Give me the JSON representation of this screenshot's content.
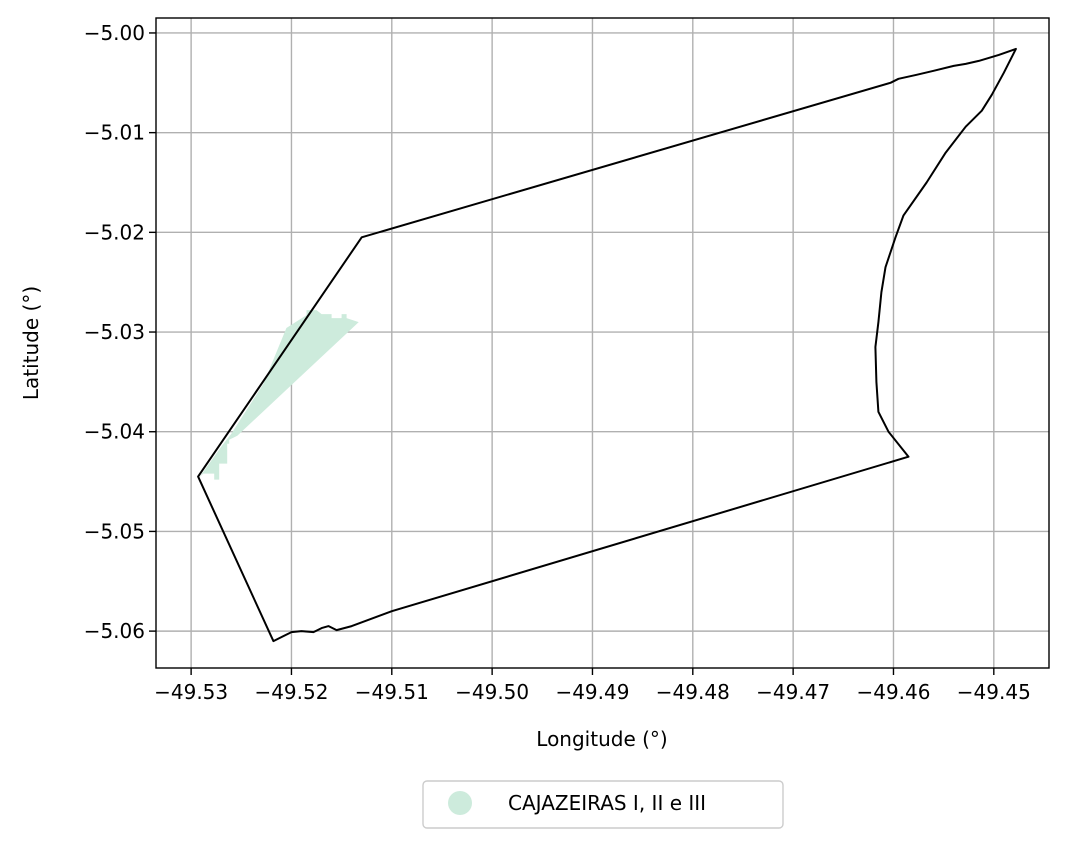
{
  "chart_data": {
    "type": "map",
    "xlabel": "Longitude (°)",
    "ylabel": "Latitude (°)",
    "xlim": [
      -49.5335,
      -49.4445
    ],
    "ylim": [
      -5.0637,
      -4.9985
    ],
    "grid": true,
    "x_ticks": [
      -49.53,
      -49.52,
      -49.51,
      -49.5,
      -49.49,
      -49.48,
      -49.47,
      -49.46,
      -49.45
    ],
    "x_tick_labels": [
      "−49.53",
      "−49.52",
      "−49.51",
      "−49.50",
      "−49.49",
      "−49.48",
      "−49.47",
      "−49.46",
      "−49.45"
    ],
    "y_ticks": [
      -5.0,
      -5.01,
      -5.02,
      -5.03,
      -5.04,
      -5.05,
      -5.06
    ],
    "y_tick_labels": [
      "−5.00",
      "−5.01",
      "−5.02",
      "−5.03",
      "−5.04",
      "−5.05",
      "−5.06"
    ],
    "boundary": {
      "stroke": "#000000",
      "coordinates": [
        [
          -49.513,
          -5.0205
        ],
        [
          -49.4603,
          -5.005
        ],
        [
          -49.4595,
          -5.0046
        ],
        [
          -49.4577,
          -5.0042
        ],
        [
          -49.456,
          -5.0038
        ],
        [
          -49.454,
          -5.0033
        ],
        [
          -49.4528,
          -5.0031
        ],
        [
          -49.4515,
          -5.0028
        ],
        [
          -49.4495,
          -5.0022
        ],
        [
          -49.4478,
          -5.0016
        ],
        [
          -49.449,
          -5.004
        ],
        [
          -49.4502,
          -5.0062
        ],
        [
          -49.4512,
          -5.0078
        ],
        [
          -49.4528,
          -5.0094
        ],
        [
          -49.4548,
          -5.012
        ],
        [
          -49.4567,
          -5.015
        ],
        [
          -49.459,
          -5.0183
        ],
        [
          -49.4598,
          -5.0205
        ],
        [
          -49.4608,
          -5.0235
        ],
        [
          -49.4612,
          -5.026
        ],
        [
          -49.4615,
          -5.029
        ],
        [
          -49.4618,
          -5.0315
        ],
        [
          -49.4617,
          -5.035
        ],
        [
          -49.4615,
          -5.038
        ],
        [
          -49.4605,
          -5.04
        ],
        [
          -49.4585,
          -5.0425
        ],
        [
          -49.51,
          -5.058
        ],
        [
          -49.514,
          -5.0595
        ],
        [
          -49.5155,
          -5.0599
        ],
        [
          -49.5163,
          -5.0595
        ],
        [
          -49.517,
          -5.0597
        ],
        [
          -49.5178,
          -5.0601
        ],
        [
          -49.519,
          -5.06
        ],
        [
          -49.52,
          -5.0601
        ],
        [
          -49.521,
          -5.0606
        ],
        [
          -49.5218,
          -5.061
        ],
        [
          -49.5293,
          -5.0445
        ],
        [
          -49.513,
          -5.0205
        ]
      ]
    },
    "zones": [
      {
        "name": "CAJAZEIRAS I, II e III",
        "color": "#cdebdc",
        "coordinates": [
          [
            -49.5205,
            -5.0296
          ],
          [
            -49.5185,
            -5.0283
          ],
          [
            -49.5185,
            -5.0278
          ],
          [
            -49.5175,
            -5.0278
          ],
          [
            -49.517,
            -5.0282
          ],
          [
            -49.516,
            -5.0282
          ],
          [
            -49.516,
            -5.0286
          ],
          [
            -49.515,
            -5.0286
          ],
          [
            -49.515,
            -5.0282
          ],
          [
            -49.5145,
            -5.0282
          ],
          [
            -49.5145,
            -5.0286
          ],
          [
            -49.5133,
            -5.029
          ],
          [
            -49.5254,
            -5.0404
          ],
          [
            -49.5262,
            -5.0408
          ],
          [
            -49.5262,
            -5.0412
          ],
          [
            -49.5264,
            -5.0412
          ],
          [
            -49.5264,
            -5.0432
          ],
          [
            -49.5272,
            -5.0432
          ],
          [
            -49.5272,
            -5.0448
          ],
          [
            -49.5277,
            -5.0448
          ],
          [
            -49.5277,
            -5.0442
          ],
          [
            -49.5288,
            -5.0442
          ],
          [
            -49.5292,
            -5.0446
          ],
          [
            -49.527,
            -5.0415
          ],
          [
            -49.526,
            -5.0402
          ],
          [
            -49.5228,
            -5.0352
          ],
          [
            -49.5205,
            -5.0296
          ]
        ]
      }
    ],
    "legend": {
      "position": "bottom-center",
      "entries": [
        {
          "label": "CAJAZEIRAS I, II e III",
          "color": "#cdebdc"
        }
      ]
    }
  }
}
